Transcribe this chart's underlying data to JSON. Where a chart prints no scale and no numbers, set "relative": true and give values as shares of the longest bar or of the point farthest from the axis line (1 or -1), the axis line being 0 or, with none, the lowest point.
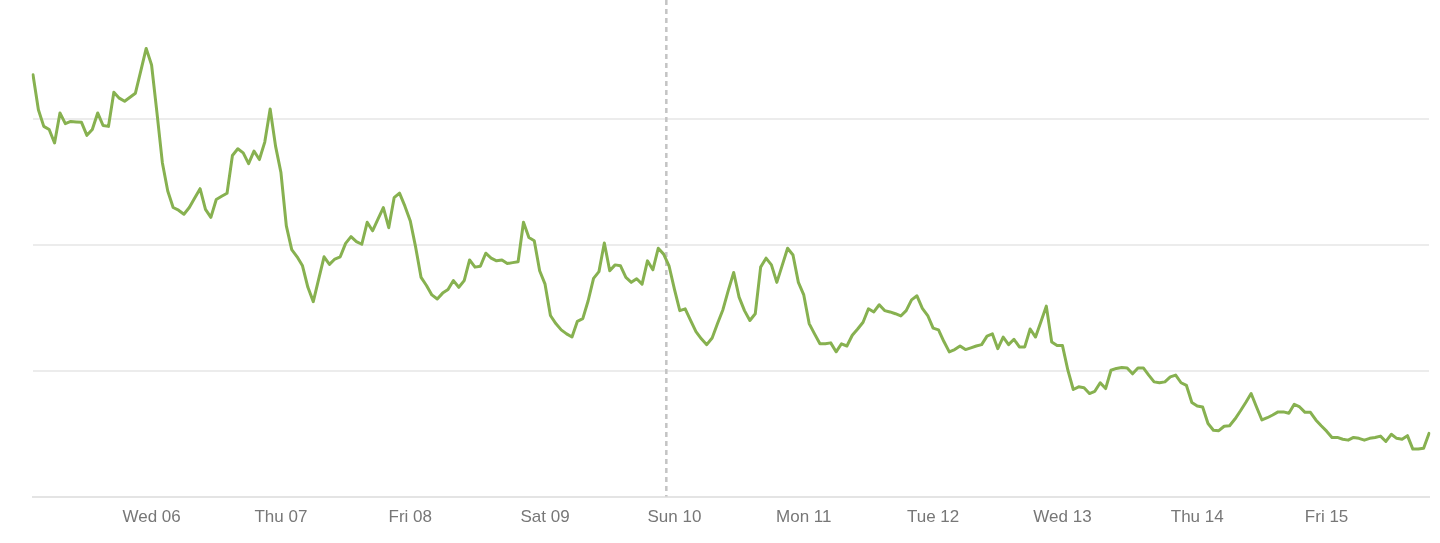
{
  "chart_data": {
    "type": "line",
    "relative": true,
    "grid": "y",
    "categories": [
      null,
      null,
      null,
      null,
      null,
      null,
      null,
      null,
      null,
      null,
      null,
      null,
      null,
      null,
      null,
      null,
      null,
      null,
      null,
      null,
      null,
      null,
      "Wed 06",
      null,
      null,
      null,
      null,
      null,
      null,
      null,
      null,
      null,
      null,
      null,
      null,
      null,
      null,
      null,
      null,
      null,
      null,
      null,
      null,
      null,
      null,
      null,
      "Thu 07",
      null,
      null,
      null,
      null,
      null,
      null,
      null,
      null,
      null,
      null,
      null,
      null,
      null,
      null,
      null,
      null,
      null,
      null,
      null,
      null,
      null,
      null,
      null,
      "Fri 08",
      null,
      null,
      null,
      null,
      null,
      null,
      null,
      null,
      null,
      null,
      null,
      null,
      null,
      null,
      null,
      null,
      null,
      null,
      null,
      null,
      null,
      null,
      null,
      null,
      "Sat 09",
      null,
      null,
      null,
      null,
      null,
      null,
      null,
      null,
      null,
      null,
      null,
      null,
      null,
      null,
      null,
      null,
      null,
      null,
      null,
      null,
      null,
      null,
      null,
      "Sun 10",
      null,
      null,
      null,
      null,
      null,
      null,
      null,
      null,
      null,
      null,
      null,
      null,
      null,
      null,
      null,
      null,
      null,
      null,
      null,
      null,
      null,
      null,
      null,
      "Mon 11",
      null,
      null,
      null,
      null,
      null,
      null,
      null,
      null,
      null,
      null,
      null,
      null,
      null,
      null,
      null,
      null,
      null,
      null,
      null,
      null,
      null,
      null,
      null,
      "Tue 12",
      null,
      null,
      null,
      null,
      null,
      null,
      null,
      null,
      null,
      null,
      null,
      null,
      null,
      null,
      null,
      null,
      null,
      null,
      null,
      null,
      null,
      null,
      null,
      "Wed 13",
      null,
      null,
      null,
      null,
      null,
      null,
      null,
      null,
      null,
      null,
      null,
      null,
      null,
      null,
      null,
      null,
      null,
      null,
      null,
      null,
      null,
      null,
      null,
      null,
      "Thu 14",
      null,
      null,
      null,
      null,
      null,
      null,
      null,
      null,
      null,
      null,
      null,
      null,
      null,
      null,
      null,
      null,
      null,
      null,
      null,
      null,
      null,
      null,
      null,
      "Fri 15",
      null,
      null,
      null,
      null,
      null,
      null,
      null,
      null,
      null,
      null,
      null,
      null,
      null,
      null,
      null,
      null,
      null,
      null,
      null
    ],
    "series": [
      {
        "color": "#87b150",
        "values": [
          0.941,
          0.863,
          0.826,
          0.819,
          0.789,
          0.856,
          0.832,
          0.837,
          0.836,
          0.835,
          0.806,
          0.819,
          0.856,
          0.828,
          0.826,
          0.902,
          0.889,
          0.882,
          0.891,
          0.9,
          0.95,
          1,
          0.963,
          0.856,
          0.745,
          0.682,
          0.645,
          0.639,
          0.63,
          0.645,
          0.666,
          0.687,
          0.641,
          0.623,
          0.663,
          0.67,
          0.677,
          0.761,
          0.776,
          0.767,
          0.743,
          0.771,
          0.752,
          0.791,
          0.865,
          0.782,
          0.723,
          0.604,
          0.551,
          0.535,
          0.515,
          0.467,
          0.435,
          0.485,
          0.535,
          0.518,
          0.53,
          0.535,
          0.565,
          0.58,
          0.569,
          0.563,
          0.612,
          0.593,
          0.619,
          0.645,
          0.6,
          0.667,
          0.677,
          0.648,
          0.615,
          0.556,
          0.489,
          0.471,
          0.45,
          0.441,
          0.454,
          0.462,
          0.482,
          0.467,
          0.482,
          0.528,
          0.512,
          0.514,
          0.543,
          0.532,
          0.526,
          0.528,
          0.52,
          0.522,
          0.524,
          0.612,
          0.578,
          0.571,
          0.504,
          0.474,
          0.404,
          0.386,
          0.372,
          0.363,
          0.356,
          0.391,
          0.397,
          0.437,
          0.487,
          0.502,
          0.566,
          0.504,
          0.517,
          0.515,
          0.489,
          0.478,
          0.486,
          0.474,
          0.526,
          0.506,
          0.554,
          0.541,
          0.515,
          0.463,
          0.415,
          0.419,
          0.393,
          0.368,
          0.352,
          0.339,
          0.354,
          0.386,
          0.417,
          0.46,
          0.5,
          0.445,
          0.415,
          0.393,
          0.408,
          0.512,
          0.532,
          0.517,
          0.478,
          0.516,
          0.554,
          0.539,
          0.478,
          0.45,
          0.386,
          0.363,
          0.341,
          0.341,
          0.343,
          0.323,
          0.341,
          0.336,
          0.36,
          0.374,
          0.389,
          0.419,
          0.412,
          0.428,
          0.415,
          0.412,
          0.408,
          0.403,
          0.415,
          0.439,
          0.448,
          0.42,
          0.404,
          0.376,
          0.372,
          0.346,
          0.323,
          0.328,
          0.336,
          0.328,
          0.332,
          0.336,
          0.339,
          0.358,
          0.363,
          0.33,
          0.356,
          0.339,
          0.351,
          0.334,
          0.334,
          0.374,
          0.356,
          0.39,
          0.425,
          0.345,
          0.337,
          0.337,
          0.282,
          0.239,
          0.245,
          0.243,
          0.23,
          0.235,
          0.254,
          0.241,
          0.282,
          0.286,
          0.288,
          0.287,
          0.274,
          0.287,
          0.287,
          0.271,
          0.256,
          0.254,
          0.256,
          0.267,
          0.271,
          0.254,
          0.248,
          0.21,
          0.202,
          0.2,
          0.163,
          0.148,
          0.147,
          0.157,
          0.158,
          0.173,
          0.191,
          0.21,
          0.23,
          0.2,
          0.171,
          0.176,
          0.182,
          0.189,
          0.189,
          0.186,
          0.206,
          0.2,
          0.188,
          0.188,
          0.171,
          0.158,
          0.146,
          0.132,
          0.132,
          0.128,
          0.126,
          0.132,
          0.13,
          0.126,
          0.13,
          0.132,
          0.135,
          0.123,
          0.139,
          0.13,
          0.128,
          0.136,
          0.106,
          0.106,
          0.108,
          0.141
        ]
      }
    ]
  }
}
